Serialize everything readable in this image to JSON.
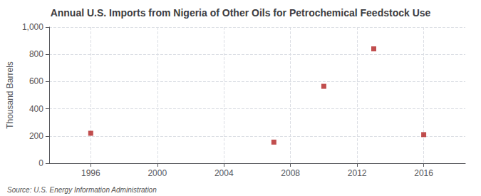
{
  "chart_data": {
    "type": "scatter",
    "title": "Annual U.S. Imports from Nigeria of Other Oils for Petrochemical Feedstock Use",
    "ylabel": "Thousand Barrels",
    "annotations": [
      "Source: U.S. Energy Information Administration"
    ],
    "x": [
      1996,
      2007,
      2010,
      2013,
      2016
    ],
    "values": [
      220,
      155,
      565,
      840,
      210
    ],
    "color": "#b22222",
    "marker": "square",
    "xlim": [
      1993.5,
      2018.5
    ],
    "ylim": [
      0,
      1000
    ],
    "xticks": [
      1996,
      2000,
      2004,
      2008,
      2012,
      2016
    ],
    "yticks": [
      0,
      200,
      400,
      600,
      800,
      {
        "value": 1000,
        "label": "1,000"
      }
    ],
    "grid": true
  }
}
